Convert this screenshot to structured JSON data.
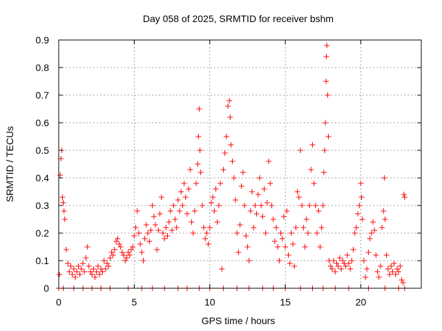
{
  "chart_data": {
    "type": "scatter",
    "title": "Day 058 of 2025, SRMTID for receiver bshm",
    "xlabel": "GPS time / hours",
    "ylabel": "SRMTID / TECUs",
    "xlim": [
      0,
      24
    ],
    "ylim": [
      0,
      0.9
    ],
    "xticks": [
      0,
      5,
      10,
      15,
      20
    ],
    "xtick_labels": [
      "0",
      "5",
      "10",
      "15",
      "20"
    ],
    "yticks": [
      0,
      0.1,
      0.2,
      0.3,
      0.4,
      0.5,
      0.6,
      0.7,
      0.8,
      0.9
    ],
    "ytick_labels": [
      "0",
      "0.1",
      "0.2",
      "0.3",
      "0.4",
      "0.5",
      "0.6",
      "0.7",
      "0.8",
      "0.9"
    ],
    "grid": true,
    "marker": "+",
    "color": "#ff0000",
    "series": [
      {
        "name": "SRMTID",
        "points": [
          [
            0.05,
            0.05
          ],
          [
            0.1,
            0.41
          ],
          [
            0.15,
            0.47
          ],
          [
            0.2,
            0.5
          ],
          [
            0.25,
            0.33
          ],
          [
            0.3,
            0.31
          ],
          [
            0.35,
            0.28
          ],
          [
            0.4,
            0.25
          ],
          [
            0.5,
            0.14
          ],
          [
            0.6,
            0.09
          ],
          [
            0.7,
            0.06
          ],
          [
            0.8,
            0.08
          ],
          [
            0.9,
            0.05
          ],
          [
            1.0,
            0.07
          ],
          [
            1.1,
            0.04
          ],
          [
            1.2,
            0.06
          ],
          [
            1.3,
            0.08
          ],
          [
            1.4,
            0.05
          ],
          [
            1.5,
            0.07
          ],
          [
            1.6,
            0.09
          ],
          [
            1.7,
            0.06
          ],
          [
            1.8,
            0.11
          ],
          [
            1.9,
            0.15
          ],
          [
            2.0,
            0.08
          ],
          [
            2.1,
            0.06
          ],
          [
            2.2,
            0.05
          ],
          [
            2.3,
            0.07
          ],
          [
            2.4,
            0.04
          ],
          [
            2.5,
            0.06
          ],
          [
            2.6,
            0.08
          ],
          [
            2.7,
            0.05
          ],
          [
            2.8,
            0.07
          ],
          [
            2.9,
            0.06
          ],
          [
            3.0,
            0.1
          ],
          [
            3.1,
            0.07
          ],
          [
            3.2,
            0.09
          ],
          [
            3.3,
            0.08
          ],
          [
            3.4,
            0.11
          ],
          [
            3.5,
            0.13
          ],
          [
            3.6,
            0.12
          ],
          [
            3.7,
            0.14
          ],
          [
            3.8,
            0.17
          ],
          [
            3.9,
            0.18
          ],
          [
            4.0,
            0.16
          ],
          [
            4.1,
            0.15
          ],
          [
            4.2,
            0.13
          ],
          [
            4.3,
            0.12
          ],
          [
            4.4,
            0.1
          ],
          [
            4.5,
            0.11
          ],
          [
            4.6,
            0.13
          ],
          [
            4.7,
            0.12
          ],
          [
            4.8,
            0.14
          ],
          [
            4.9,
            0.15
          ],
          [
            5.0,
            0.19
          ],
          [
            5.1,
            0.22
          ],
          [
            5.2,
            0.28
          ],
          [
            5.3,
            0.2
          ],
          [
            5.4,
            0.16
          ],
          [
            5.5,
            0.13
          ],
          [
            5.6,
            0.1
          ],
          [
            5.7,
            0.18
          ],
          [
            5.8,
            0.23
          ],
          [
            5.9,
            0.2
          ],
          [
            6.0,
            0.17
          ],
          [
            6.1,
            0.21
          ],
          [
            6.2,
            0.3
          ],
          [
            6.3,
            0.26
          ],
          [
            6.4,
            0.23
          ],
          [
            6.5,
            0.14
          ],
          [
            6.6,
            0.21
          ],
          [
            6.7,
            0.27
          ],
          [
            6.8,
            0.33
          ],
          [
            6.9,
            0.2
          ],
          [
            7.0,
            0.18
          ],
          [
            7.1,
            0.22
          ],
          [
            7.2,
            0.19
          ],
          [
            7.3,
            0.24
          ],
          [
            7.4,
            0.28
          ],
          [
            7.5,
            0.21
          ],
          [
            7.6,
            0.3
          ],
          [
            7.7,
            0.25
          ],
          [
            7.8,
            0.22
          ],
          [
            7.9,
            0.32
          ],
          [
            8.0,
            0.28
          ],
          [
            8.1,
            0.35
          ],
          [
            8.2,
            0.3
          ],
          [
            8.3,
            0.38
          ],
          [
            8.4,
            0.33
          ],
          [
            8.5,
            0.27
          ],
          [
            8.6,
            0.36
          ],
          [
            8.7,
            0.43
          ],
          [
            8.8,
            0.24
          ],
          [
            8.9,
            0.2
          ],
          [
            9.0,
            0.28
          ],
          [
            9.1,
            0.38
          ],
          [
            9.2,
            0.45
          ],
          [
            9.25,
            0.55
          ],
          [
            9.3,
            0.65
          ],
          [
            9.35,
            0.5
          ],
          [
            9.4,
            0.42
          ],
          [
            9.5,
            0.3
          ],
          [
            9.6,
            0.22
          ],
          [
            9.7,
            0.18
          ],
          [
            9.8,
            0.2
          ],
          [
            9.9,
            0.16
          ],
          [
            10.0,
            0.22
          ],
          [
            10.1,
            0.31
          ],
          [
            10.2,
            0.33
          ],
          [
            10.3,
            0.28
          ],
          [
            10.4,
            0.36
          ],
          [
            10.5,
            0.24
          ],
          [
            10.6,
            0.3
          ],
          [
            10.7,
            0.38
          ],
          [
            10.8,
            0.07
          ],
          [
            10.9,
            0.43
          ],
          [
            11.0,
            0.49
          ],
          [
            11.1,
            0.55
          ],
          [
            11.2,
            0.66
          ],
          [
            11.3,
            0.68
          ],
          [
            11.35,
            0.62
          ],
          [
            11.4,
            0.52
          ],
          [
            11.5,
            0.46
          ],
          [
            11.6,
            0.4
          ],
          [
            11.7,
            0.32
          ],
          [
            11.8,
            0.2
          ],
          [
            11.9,
            0.13
          ],
          [
            12.0,
            0.23
          ],
          [
            12.1,
            0.37
          ],
          [
            12.2,
            0.42
          ],
          [
            12.3,
            0.3
          ],
          [
            12.4,
            0.19
          ],
          [
            12.5,
            0.15
          ],
          [
            12.6,
            0.1
          ],
          [
            12.7,
            0.28
          ],
          [
            12.8,
            0.35
          ],
          [
            12.9,
            0.22
          ],
          [
            13.0,
            0.3
          ],
          [
            13.1,
            0.27
          ],
          [
            13.2,
            0.34
          ],
          [
            13.3,
            0.4
          ],
          [
            13.4,
            0.3
          ],
          [
            13.5,
            0.26
          ],
          [
            13.6,
            0.36
          ],
          [
            13.7,
            0.2
          ],
          [
            13.8,
            0.31
          ],
          [
            13.9,
            0.46
          ],
          [
            14.0,
            0.38
          ],
          [
            14.1,
            0.3
          ],
          [
            14.2,
            0.25
          ],
          [
            14.3,
            0.17
          ],
          [
            14.4,
            0.22
          ],
          [
            14.5,
            0.15
          ],
          [
            14.6,
            0.1
          ],
          [
            14.7,
            0.2
          ],
          [
            14.8,
            0.18
          ],
          [
            14.9,
            0.26
          ],
          [
            15.0,
            0.15
          ],
          [
            15.1,
            0.28
          ],
          [
            15.2,
            0.12
          ],
          [
            15.3,
            0.09
          ],
          [
            15.4,
            0.2
          ],
          [
            15.5,
            0.16
          ],
          [
            15.6,
            0.08
          ],
          [
            15.7,
            0.22
          ],
          [
            15.8,
            0.35
          ],
          [
            15.9,
            0.33
          ],
          [
            16.0,
            0.5
          ],
          [
            16.1,
            0.3
          ],
          [
            16.2,
            0.22
          ],
          [
            16.3,
            0.15
          ],
          [
            16.4,
            0.25
          ],
          [
            16.5,
            0.2
          ],
          [
            16.6,
            0.3
          ],
          [
            16.7,
            0.43
          ],
          [
            16.8,
            0.52
          ],
          [
            16.9,
            0.38
          ],
          [
            17.0,
            0.3
          ],
          [
            17.1,
            0.2
          ],
          [
            17.2,
            0.28
          ],
          [
            17.3,
            0.15
          ],
          [
            17.4,
            0.22
          ],
          [
            17.5,
            0.3
          ],
          [
            17.55,
            0.42
          ],
          [
            17.6,
            0.5
          ],
          [
            17.65,
            0.6
          ],
          [
            17.7,
            0.75
          ],
          [
            17.72,
            0.84
          ],
          [
            17.75,
            0.88
          ],
          [
            17.8,
            0.7
          ],
          [
            17.85,
            0.55
          ],
          [
            17.9,
            0.1
          ],
          [
            18.0,
            0.08
          ],
          [
            18.1,
            0.07
          ],
          [
            18.2,
            0.1
          ],
          [
            18.3,
            0.06
          ],
          [
            18.4,
            0.09
          ],
          [
            18.5,
            0.08
          ],
          [
            18.6,
            0.11
          ],
          [
            18.7,
            0.07
          ],
          [
            18.8,
            0.1
          ],
          [
            18.9,
            0.09
          ],
          [
            19.0,
            0.08
          ],
          [
            19.1,
            0.12
          ],
          [
            19.2,
            0.09
          ],
          [
            19.3,
            0.07
          ],
          [
            19.4,
            0.1
          ],
          [
            19.5,
            0.14
          ],
          [
            19.6,
            0.2
          ],
          [
            19.7,
            0.22
          ],
          [
            19.8,
            0.27
          ],
          [
            19.9,
            0.3
          ],
          [
            20.0,
            0.38
          ],
          [
            20.05,
            0.33
          ],
          [
            20.1,
            0.25
          ],
          [
            20.2,
            0.1
          ],
          [
            20.3,
            0.04
          ],
          [
            20.4,
            0.07
          ],
          [
            20.5,
            0.13
          ],
          [
            20.6,
            0.18
          ],
          [
            20.7,
            0.2
          ],
          [
            20.8,
            0.24
          ],
          [
            20.9,
            0.21
          ],
          [
            21.0,
            0.12
          ],
          [
            21.1,
            0.06
          ],
          [
            21.2,
            0.04
          ],
          [
            21.3,
            0.08
          ],
          [
            21.4,
            0.22
          ],
          [
            21.5,
            0.28
          ],
          [
            21.55,
            0.4
          ],
          [
            21.6,
            0.25
          ],
          [
            21.7,
            0.12
          ],
          [
            21.8,
            0.07
          ],
          [
            21.9,
            0.05
          ],
          [
            22.0,
            0.08
          ],
          [
            22.1,
            0.06
          ],
          [
            22.2,
            0.09
          ],
          [
            22.3,
            0.05
          ],
          [
            22.4,
            0.07
          ],
          [
            22.5,
            0.06
          ],
          [
            22.6,
            0.08
          ],
          [
            22.7,
            0.03
          ],
          [
            22.8,
            0.02
          ],
          [
            22.85,
            0.34
          ],
          [
            22.9,
            0.33
          ],
          [
            0.0,
            0.0
          ],
          [
            0.3,
            0.0
          ],
          [
            1.0,
            0.0
          ],
          [
            1.6,
            0.0
          ],
          [
            2.2,
            0.0
          ],
          [
            2.8,
            0.0
          ],
          [
            3.4,
            0.0
          ],
          [
            4.6,
            0.0
          ],
          [
            5.5,
            0.0
          ],
          [
            6.2,
            0.0
          ],
          [
            7.0,
            0.0
          ],
          [
            7.9,
            0.0
          ],
          [
            8.5,
            0.0
          ],
          [
            9.3,
            0.0
          ],
          [
            10.0,
            0.0
          ],
          [
            10.9,
            0.0
          ],
          [
            11.8,
            0.0
          ],
          [
            12.6,
            0.0
          ],
          [
            13.5,
            0.0
          ],
          [
            14.2,
            0.0
          ],
          [
            15.0,
            0.0
          ],
          [
            16.0,
            0.0
          ],
          [
            16.8,
            0.0
          ],
          [
            17.5,
            0.0
          ],
          [
            18.3,
            0.0
          ],
          [
            19.2,
            0.0
          ],
          [
            20.5,
            0.0
          ],
          [
            21.6,
            0.0
          ],
          [
            22.5,
            0.0
          ],
          [
            22.9,
            0.0
          ]
        ]
      }
    ]
  }
}
